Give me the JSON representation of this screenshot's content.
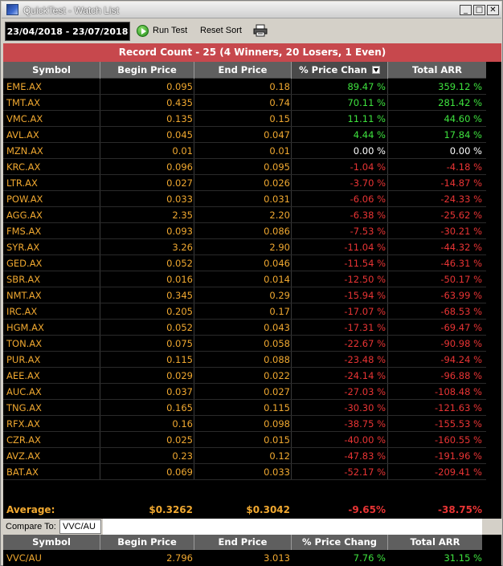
{
  "window": {
    "title": "QuickTest - Watch List"
  },
  "toolbar": {
    "date_range": "23/04/2018 - 23/07/2018",
    "run_test_label": "Run Test",
    "reset_sort_label": "Reset Sort"
  },
  "banner": {
    "text": "Record Count - 25 (4 Winners, 20 Losers, 1 Even)"
  },
  "columns": [
    "Symbol",
    "Begin Price",
    "End Price",
    "% Price Chan",
    "Total ARR"
  ],
  "rows": [
    {
      "symbol": "EME.AX",
      "begin": "0.095",
      "end": "0.18",
      "pct": "89.47 %",
      "arr": "359.12 %",
      "trend": "up"
    },
    {
      "symbol": "TMT.AX",
      "begin": "0.435",
      "end": "0.74",
      "pct": "70.11 %",
      "arr": "281.42 %",
      "trend": "up"
    },
    {
      "symbol": "VMC.AX",
      "begin": "0.135",
      "end": "0.15",
      "pct": "11.11 %",
      "arr": "44.60 %",
      "trend": "up"
    },
    {
      "symbol": "AVL.AX",
      "begin": "0.045",
      "end": "0.047",
      "pct": "4.44 %",
      "arr": "17.84 %",
      "trend": "up"
    },
    {
      "symbol": "MZN.AX",
      "begin": "0.01",
      "end": "0.01",
      "pct": "0.00 %",
      "arr": "0.00 %",
      "trend": "even"
    },
    {
      "symbol": "KRC.AX",
      "begin": "0.096",
      "end": "0.095",
      "pct": "-1.04 %",
      "arr": "-4.18 %",
      "trend": "down"
    },
    {
      "symbol": "LTR.AX",
      "begin": "0.027",
      "end": "0.026",
      "pct": "-3.70 %",
      "arr": "-14.87 %",
      "trend": "down"
    },
    {
      "symbol": "POW.AX",
      "begin": "0.033",
      "end": "0.031",
      "pct": "-6.06 %",
      "arr": "-24.33 %",
      "trend": "down"
    },
    {
      "symbol": "AGG.AX",
      "begin": "2.35",
      "end": "2.20",
      "pct": "-6.38 %",
      "arr": "-25.62 %",
      "trend": "down"
    },
    {
      "symbol": "FMS.AX",
      "begin": "0.093",
      "end": "0.086",
      "pct": "-7.53 %",
      "arr": "-30.21 %",
      "trend": "down"
    },
    {
      "symbol": "SYR.AX",
      "begin": "3.26",
      "end": "2.90",
      "pct": "-11.04 %",
      "arr": "-44.32 %",
      "trend": "down"
    },
    {
      "symbol": "GED.AX",
      "begin": "0.052",
      "end": "0.046",
      "pct": "-11.54 %",
      "arr": "-46.31 %",
      "trend": "down"
    },
    {
      "symbol": "SBR.AX",
      "begin": "0.016",
      "end": "0.014",
      "pct": "-12.50 %",
      "arr": "-50.17 %",
      "trend": "down"
    },
    {
      "symbol": "NMT.AX",
      "begin": "0.345",
      "end": "0.29",
      "pct": "-15.94 %",
      "arr": "-63.99 %",
      "trend": "down"
    },
    {
      "symbol": "IRC.AX",
      "begin": "0.205",
      "end": "0.17",
      "pct": "-17.07 %",
      "arr": "-68.53 %",
      "trend": "down"
    },
    {
      "symbol": "HGM.AX",
      "begin": "0.052",
      "end": "0.043",
      "pct": "-17.31 %",
      "arr": "-69.47 %",
      "trend": "down"
    },
    {
      "symbol": "TON.AX",
      "begin": "0.075",
      "end": "0.058",
      "pct": "-22.67 %",
      "arr": "-90.98 %",
      "trend": "down"
    },
    {
      "symbol": "PUR.AX",
      "begin": "0.115",
      "end": "0.088",
      "pct": "-23.48 %",
      "arr": "-94.24 %",
      "trend": "down"
    },
    {
      "symbol": "AEE.AX",
      "begin": "0.029",
      "end": "0.022",
      "pct": "-24.14 %",
      "arr": "-96.88 %",
      "trend": "down"
    },
    {
      "symbol": "AUC.AX",
      "begin": "0.037",
      "end": "0.027",
      "pct": "-27.03 %",
      "arr": "-108.48 %",
      "trend": "down"
    },
    {
      "symbol": "TNG.AX",
      "begin": "0.165",
      "end": "0.115",
      "pct": "-30.30 %",
      "arr": "-121.63 %",
      "trend": "down"
    },
    {
      "symbol": "RFX.AX",
      "begin": "0.16",
      "end": "0.098",
      "pct": "-38.75 %",
      "arr": "-155.53 %",
      "trend": "down"
    },
    {
      "symbol": "CZR.AX",
      "begin": "0.025",
      "end": "0.015",
      "pct": "-40.00 %",
      "arr": "-160.55 %",
      "trend": "down"
    },
    {
      "symbol": "AVZ.AX",
      "begin": "0.23",
      "end": "0.12",
      "pct": "-47.83 %",
      "arr": "-191.96 %",
      "trend": "down"
    },
    {
      "symbol": "BAT.AX",
      "begin": "0.069",
      "end": "0.033",
      "pct": "-52.17 %",
      "arr": "-209.41 %",
      "trend": "down"
    }
  ],
  "average": {
    "label": "Average:",
    "begin": "$0.3262",
    "end": "$0.3042",
    "pct": "-9.65%",
    "arr": "-38.75%"
  },
  "compare": {
    "label": "Compare To:",
    "value": "VVC/AU",
    "columns": [
      "Symbol",
      "Begin Price",
      "End Price",
      "% Price Chang",
      "Total ARR"
    ],
    "row": {
      "symbol": "VVC/AU",
      "begin": "2.796",
      "end": "3.013",
      "pct": "7.76 %",
      "arr": "31.15 %",
      "trend": "up"
    }
  },
  "colors": {
    "banner": "#c7484d",
    "winner": "#3ee23e",
    "loser": "#e83434",
    "even": "#ffffff",
    "price": "#f0a830",
    "header": "#5f5f5f"
  },
  "icons": [
    "app-icon",
    "play-icon",
    "printer-icon",
    "sort-desc-icon"
  ]
}
